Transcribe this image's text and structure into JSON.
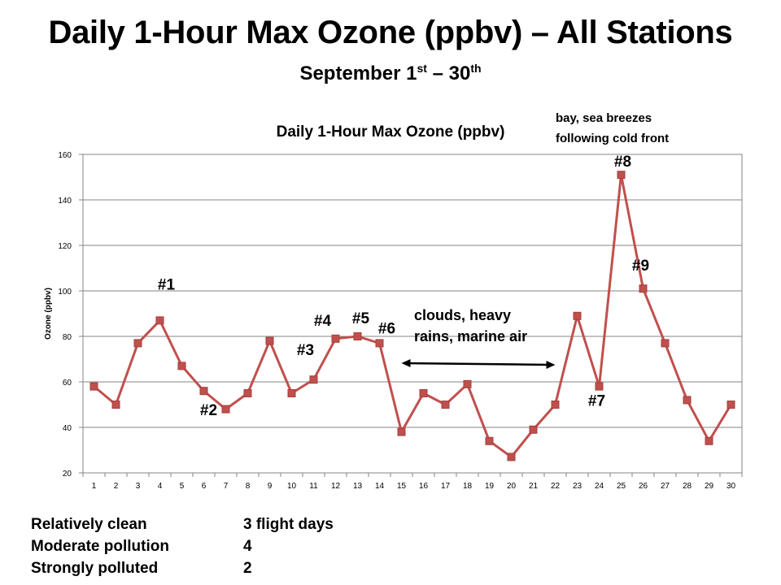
{
  "slide": {
    "title": "Daily 1-Hour Max Ozone (ppbv) – All Stations",
    "subtitle": {
      "prefix": "September 1",
      "sup1": "st",
      "mid": " – 30",
      "sup2": "th"
    }
  },
  "chart_data": {
    "type": "line",
    "title": "Daily 1-Hour Max Ozone (ppbv)",
    "xlabel": "",
    "ylabel": "Ozone (ppbv)",
    "ylim": [
      20,
      160
    ],
    "yticks": [
      20,
      40,
      60,
      80,
      100,
      120,
      140,
      160
    ],
    "grid": true,
    "categories": [
      "1",
      "2",
      "3",
      "4",
      "5",
      "6",
      "7",
      "8",
      "9",
      "10",
      "11",
      "12",
      "13",
      "14",
      "15",
      "16",
      "17",
      "18",
      "19",
      "20",
      "21",
      "22",
      "23",
      "24",
      "25",
      "26",
      "27",
      "28",
      "29",
      "30"
    ],
    "values": [
      58,
      50,
      77,
      87,
      67,
      56,
      48,
      55,
      78,
      55,
      61,
      79,
      80,
      77,
      38,
      55,
      50,
      59,
      34,
      27,
      39,
      50,
      89,
      58,
      151,
      101,
      77,
      52,
      34,
      50
    ],
    "series_color": "#c0504d",
    "point_labels": [
      {
        "text": "#1",
        "day": 4
      },
      {
        "text": "#2",
        "day": 6
      },
      {
        "text": "#3",
        "day": 11
      },
      {
        "text": "#4",
        "day": 12
      },
      {
        "text": "#5",
        "day": 13
      },
      {
        "text": "#6",
        "day": 14
      },
      {
        "text": "#7",
        "day": 24
      },
      {
        "text": "#8",
        "day": 25
      },
      {
        "text": "#9",
        "day": 26
      }
    ],
    "annotations": [
      {
        "lines": [
          "clouds, heavy",
          "rains, marine air"
        ],
        "arrow_from_day": 15,
        "arrow_to_day": 22
      },
      {
        "lines": [
          "bay, sea breezes",
          "following cold front"
        ]
      }
    ]
  },
  "legend": [
    {
      "category": "Relatively clean",
      "value": "3 flight days"
    },
    {
      "category": "Moderate pollution",
      "value": "4"
    },
    {
      "category": "Strongly polluted",
      "value": "2"
    }
  ]
}
